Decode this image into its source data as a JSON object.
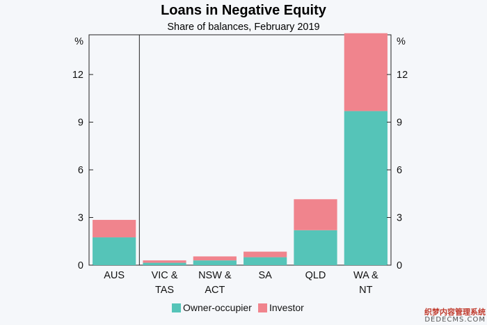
{
  "watermark": {
    "line1": "织梦内容管理系统",
    "line2": "DEDECMS.COM"
  },
  "chart_data": {
    "type": "bar",
    "stacked": true,
    "title": "Loans in Negative Equity",
    "subtitle": "Share of balances, February 2019",
    "unit": "%",
    "categories": [
      [
        "AUS"
      ],
      [
        "VIC &",
        "TAS"
      ],
      [
        "NSW &",
        "ACT"
      ],
      [
        "SA"
      ],
      [
        "QLD"
      ],
      [
        "WA &",
        "NT"
      ]
    ],
    "series": [
      {
        "name": "Owner-occupier",
        "color": "#55c4b8",
        "values": [
          1.75,
          0.15,
          0.3,
          0.5,
          2.2,
          9.7
        ]
      },
      {
        "name": "Investor",
        "color": "#f0848d",
        "values": [
          1.1,
          0.15,
          0.25,
          0.35,
          1.95,
          4.9
        ]
      }
    ],
    "ylim": [
      0,
      14.5
    ],
    "yticks": [
      0,
      3,
      6,
      9,
      12
    ],
    "grid": false,
    "legend_position": "bottom",
    "separator_after_category": 0
  }
}
